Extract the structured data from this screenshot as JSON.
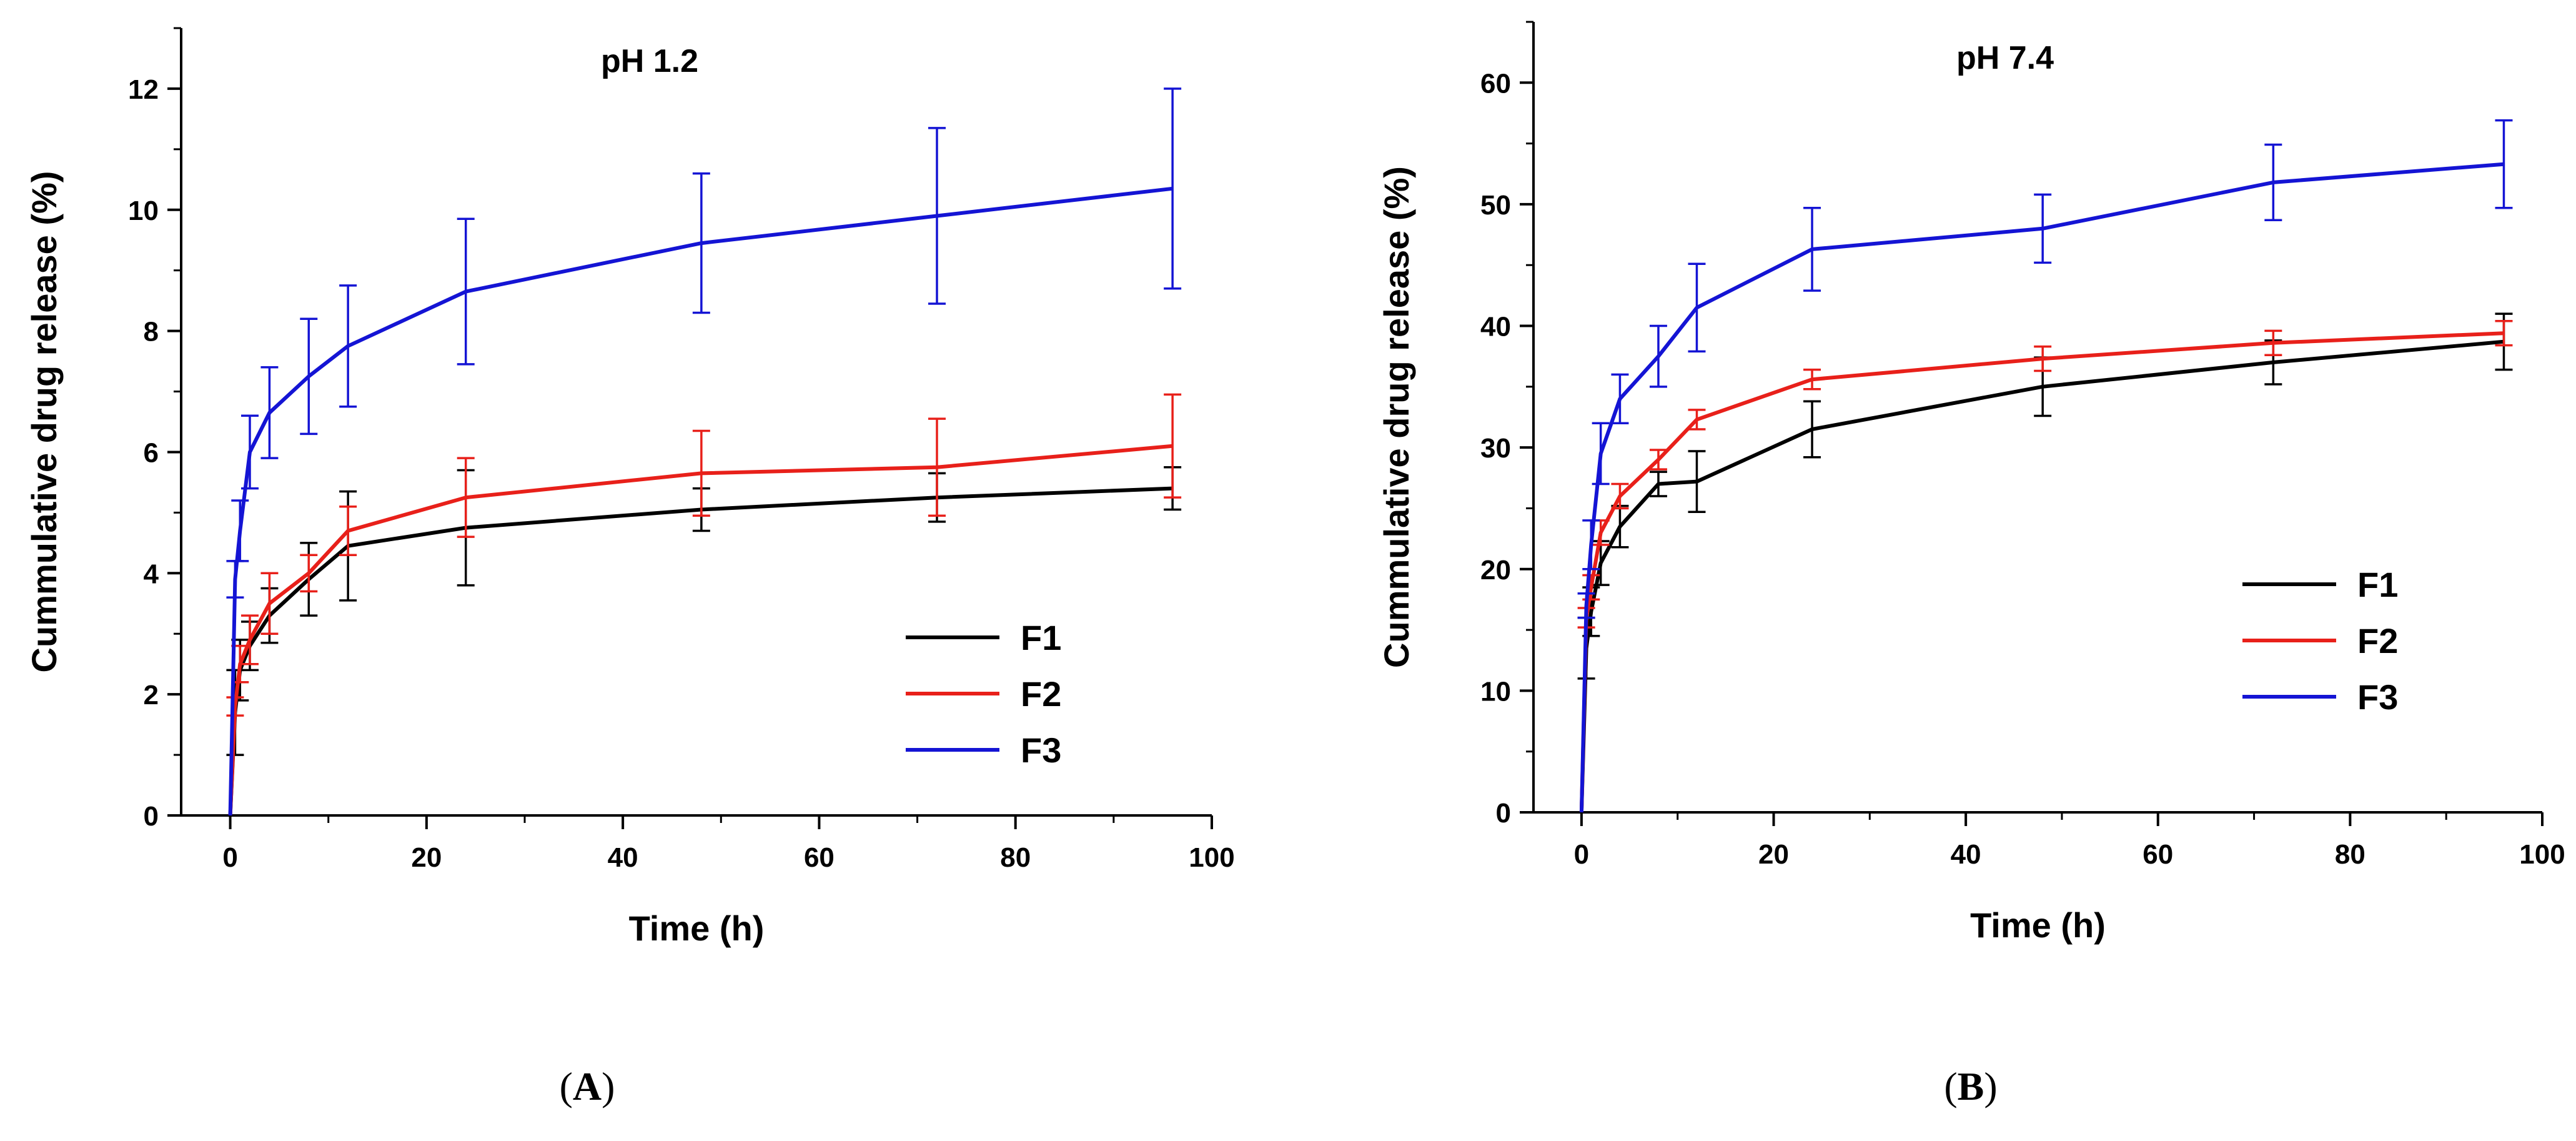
{
  "panels": [
    {
      "label_open": "(",
      "label_letter": "A",
      "label_close": ")"
    },
    {
      "label_open": "(",
      "label_letter": "B",
      "label_close": ")"
    }
  ],
  "chart_data": [
    {
      "type": "line",
      "title": "pH 1.2",
      "xlabel": "Time (h)",
      "ylabel": "Cummulative drug release (%)",
      "xlim": [
        -5,
        100
      ],
      "ylim": [
        0,
        13
      ],
      "xticks": [
        0,
        20,
        40,
        60,
        80,
        100
      ],
      "yticks": [
        0,
        2,
        4,
        6,
        8,
        10,
        12
      ],
      "grid": false,
      "legend_position": "lower-right",
      "x": [
        0,
        0.5,
        1,
        2,
        4,
        8,
        12,
        24,
        48,
        72,
        96
      ],
      "series": [
        {
          "name": "F1",
          "color": "#000000",
          "values": [
            0,
            1.7,
            2.4,
            2.8,
            3.3,
            3.9,
            4.45,
            4.75,
            5.05,
            5.25,
            5.4
          ],
          "errors": [
            0,
            0.7,
            0.5,
            0.4,
            0.45,
            0.6,
            0.9,
            0.95,
            0.35,
            0.4,
            0.35
          ]
        },
        {
          "name": "F2",
          "color": "#e8201a",
          "values": [
            0,
            1.8,
            2.5,
            2.9,
            3.5,
            4.0,
            4.7,
            5.25,
            5.65,
            5.75,
            6.1
          ],
          "errors": [
            0,
            0.15,
            0.3,
            0.4,
            0.5,
            0.3,
            0.4,
            0.65,
            0.7,
            0.8,
            0.85
          ]
        },
        {
          "name": "F3",
          "color": "#1414d4",
          "values": [
            0,
            3.9,
            4.7,
            6.0,
            6.65,
            7.25,
            7.75,
            8.65,
            9.45,
            9.9,
            10.35
          ],
          "errors": [
            0,
            0.3,
            0.5,
            0.6,
            0.75,
            0.95,
            1.0,
            1.2,
            1.15,
            1.45,
            1.65
          ]
        }
      ]
    },
    {
      "type": "line",
      "title": "pH 7.4",
      "xlabel": "Time (h)",
      "ylabel": "Cummulative drug release (%)",
      "xlim": [
        -5,
        100
      ],
      "ylim": [
        0,
        65
      ],
      "xticks": [
        0,
        20,
        40,
        60,
        80,
        100
      ],
      "yticks": [
        0,
        10,
        20,
        30,
        40,
        50,
        60
      ],
      "grid": false,
      "legend_position": "lower-right",
      "x": [
        0,
        0.5,
        1,
        2,
        4,
        8,
        12,
        24,
        48,
        72,
        96
      ],
      "series": [
        {
          "name": "F1",
          "color": "#000000",
          "values": [
            0,
            13.5,
            16.5,
            20.5,
            23.5,
            27.0,
            27.2,
            31.5,
            35.0,
            37.0,
            38.7
          ],
          "errors": [
            0,
            2.5,
            2.0,
            1.8,
            1.7,
            1.0,
            2.5,
            2.3,
            2.4,
            1.8,
            2.3
          ]
        },
        {
          "name": "F2",
          "color": "#e8201a",
          "values": [
            0,
            16.0,
            18.5,
            23.0,
            26.0,
            29.0,
            32.3,
            35.6,
            37.3,
            38.6,
            39.4
          ],
          "errors": [
            0,
            0.8,
            1.0,
            1.0,
            1.0,
            0.8,
            0.8,
            0.8,
            1.0,
            1.0,
            1.0
          ]
        },
        {
          "name": "F3",
          "color": "#1414d4",
          "values": [
            0,
            17.0,
            22.0,
            29.5,
            34.0,
            37.5,
            41.5,
            46.3,
            48.0,
            51.8,
            53.3
          ],
          "errors": [
            0,
            1.0,
            2.0,
            2.5,
            2.0,
            2.5,
            3.6,
            3.4,
            2.8,
            3.1,
            3.6
          ]
        }
      ]
    }
  ]
}
